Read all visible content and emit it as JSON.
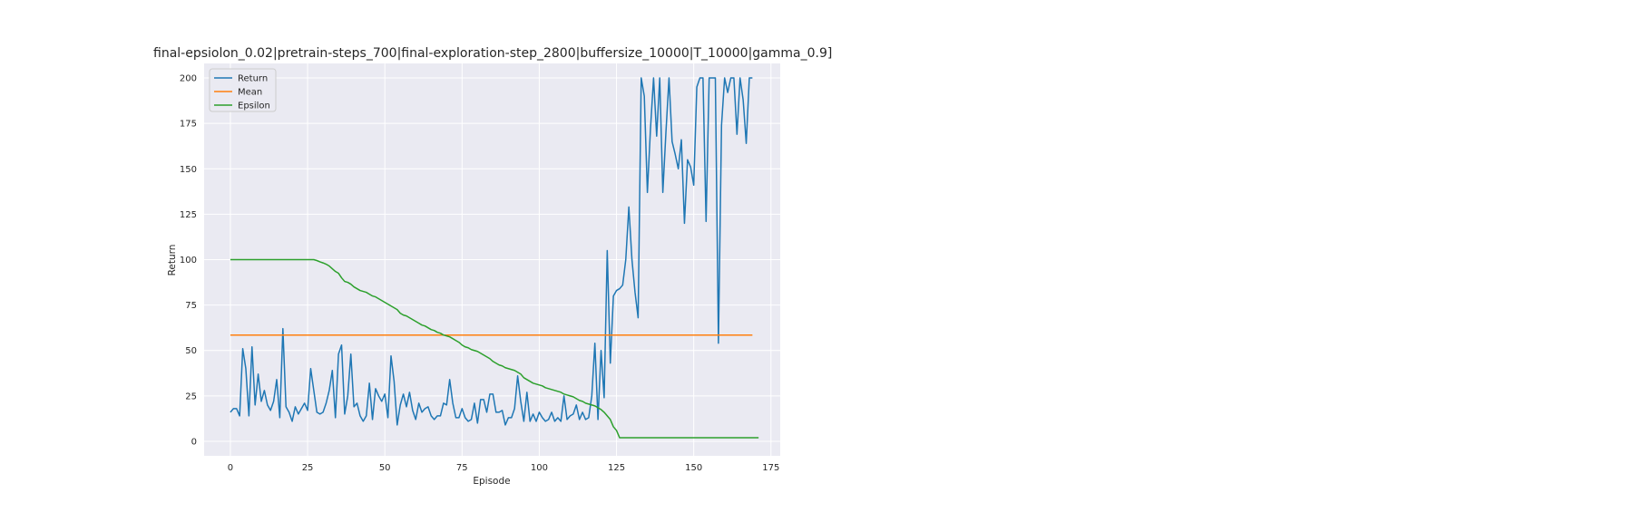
{
  "chart_data": {
    "type": "line",
    "title": "final-epsiolon_0.02|pretrain-steps_700|final-exploration-step_2800|buffersize_10000|T_10000|gamma_0.9]",
    "xlabel": "Episode",
    "ylabel": "Return",
    "xlim": [
      -8.5,
      178
    ],
    "ylim": [
      -8,
      208
    ],
    "xticks": [
      0,
      25,
      50,
      75,
      100,
      125,
      150,
      175
    ],
    "yticks": [
      0,
      25,
      50,
      75,
      100,
      125,
      150,
      175,
      200
    ],
    "grid": true,
    "legend_position": "top-left",
    "series": [
      {
        "name": "Return",
        "color": "#1f77b4",
        "values": [
          16,
          18,
          18,
          14,
          51,
          40,
          14,
          52,
          20,
          37,
          22,
          28,
          20,
          17,
          22,
          34,
          13,
          62,
          19,
          16,
          11,
          19,
          15,
          18,
          21,
          17,
          40,
          28,
          16,
          15,
          16,
          21,
          28,
          39,
          13,
          48,
          53,
          15,
          25,
          48,
          19,
          21,
          14,
          11,
          14,
          32,
          12,
          29,
          25,
          22,
          26,
          13,
          47,
          33,
          9,
          20,
          26,
          19,
          27,
          17,
          12,
          21,
          16,
          18,
          19,
          14,
          12,
          14,
          14,
          21,
          20,
          34,
          21,
          13,
          13,
          18,
          13,
          11,
          12,
          21,
          10,
          23,
          23,
          16,
          26,
          26,
          16,
          16,
          17,
          9,
          13,
          13,
          18,
          36,
          22,
          11,
          27,
          11,
          15,
          11,
          16,
          13,
          11,
          12,
          16,
          11,
          13,
          11,
          25,
          12,
          14,
          15,
          20,
          12,
          16,
          12,
          13,
          25,
          54,
          12,
          50,
          24,
          105,
          43,
          80,
          83,
          84,
          86,
          100,
          129,
          100,
          82,
          68,
          200,
          190,
          137,
          172,
          200,
          168,
          200,
          137,
          170,
          200,
          165,
          158,
          150,
          166,
          120,
          155,
          151,
          141,
          195,
          200,
          200,
          121,
          200,
          200,
          200,
          54,
          174,
          200,
          192,
          200,
          200,
          169,
          200,
          188,
          164,
          200,
          200
        ]
      },
      {
        "name": "Mean",
        "color": "#ff7f0e",
        "values": [
          58.5,
          58.5
        ]
      },
      {
        "name": "Epsilon",
        "color": "#2ca02c",
        "values": [
          100,
          100,
          100,
          100,
          100,
          100,
          100,
          100,
          100,
          100,
          100,
          100,
          100,
          100,
          100,
          100,
          100,
          100,
          100,
          100,
          100,
          100,
          100,
          100,
          100,
          100,
          100,
          100,
          99.5,
          98.8,
          98.2,
          97.5,
          96.5,
          95,
          93.5,
          92.5,
          90,
          88,
          87.5,
          86.5,
          85,
          84,
          83,
          82.5,
          82,
          81,
          80,
          79.5,
          78.5,
          77.5,
          76.5,
          75.5,
          74.5,
          73.5,
          72.5,
          70.5,
          69.5,
          69,
          68,
          67,
          66,
          65,
          64,
          63.5,
          62.5,
          61.5,
          61,
          60,
          59.5,
          58.5,
          58,
          57.5,
          56.5,
          55.5,
          54.5,
          53,
          52,
          51.5,
          50.5,
          50,
          49.5,
          48.5,
          47.5,
          46.5,
          45.5,
          44,
          43,
          42,
          41.5,
          40.5,
          40,
          39.5,
          39,
          38,
          37,
          35,
          34,
          33,
          32,
          31.5,
          31,
          30.5,
          29.5,
          29,
          28.5,
          28,
          27.5,
          27,
          26,
          25.5,
          25,
          24.5,
          23.5,
          22.5,
          22,
          21,
          20.5,
          20,
          19.5,
          18.5,
          17.5,
          16,
          14,
          12,
          8,
          6,
          2,
          2,
          2,
          2,
          2,
          2,
          2,
          2,
          2,
          2,
          2,
          2,
          2,
          2,
          2,
          2,
          2,
          2,
          2,
          2,
          2,
          2,
          2,
          2,
          2,
          2,
          2,
          2,
          2,
          2,
          2,
          2,
          2,
          2,
          2,
          2,
          2,
          2,
          2,
          2,
          2,
          2,
          2,
          2,
          2,
          2
        ]
      }
    ]
  }
}
